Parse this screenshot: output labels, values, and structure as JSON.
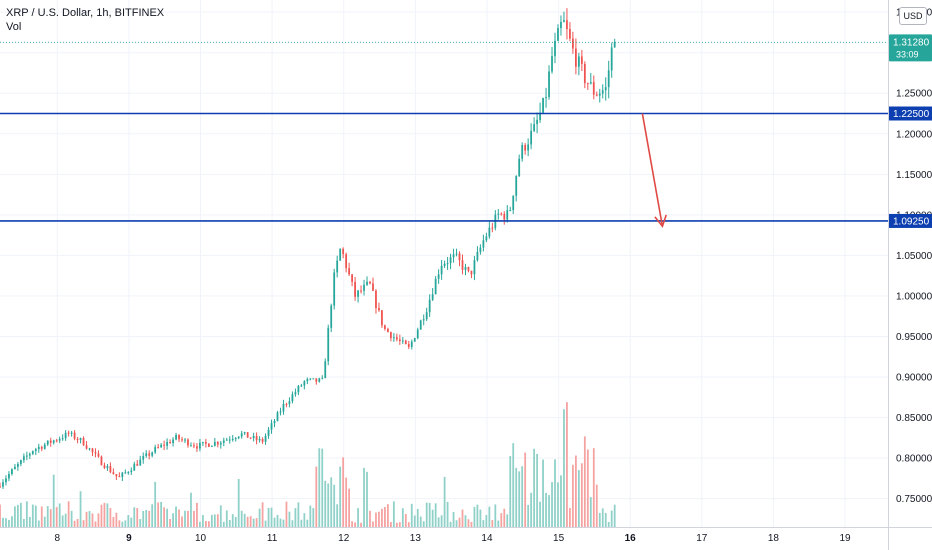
{
  "header": {
    "symbol_line": "XRP / U.S. Dollar, 1h, BITFINEX",
    "indicator": "Vol",
    "currency": "USD"
  },
  "price_scale": {
    "top_partial_label": "1.",
    "current_price": "1.31280",
    "countdown": "33:09"
  },
  "colors": {
    "up": "#26a69a",
    "down": "#ef5350",
    "up_volume": "#8fd1c8",
    "down_volume": "#f5a3a1",
    "level_line": "#0d3fb0",
    "arrow": "#e04a45",
    "current_price_line": "#26a69a",
    "grid": "#f0f3fa"
  },
  "chart_data": {
    "type": "candlestick",
    "xlabel": "",
    "ylabel": "",
    "ylim": [
      0.715,
      1.365
    ],
    "x_range_days": [
      7.2,
      19.6
    ],
    "x_tick_labels": [
      "8",
      "9",
      "10",
      "11",
      "12",
      "13",
      "14",
      "15",
      "16",
      "17",
      "18",
      "19"
    ],
    "x_tick_days": [
      8,
      9,
      10,
      11,
      12,
      13,
      14,
      15,
      16,
      17,
      18,
      19
    ],
    "bold_x_ticks": [
      "9",
      "16"
    ],
    "y_ticks": [
      0.75,
      0.8,
      0.85,
      0.9,
      0.95,
      1.0,
      1.05,
      1.1,
      1.15,
      1.2,
      1.25,
      1.3,
      1.35
    ],
    "y_tick_labels": [
      "0.75000",
      "0.80000",
      "0.85000",
      "0.90000",
      "0.95000",
      "1.00000",
      "1.05000",
      "1.10000",
      "1.15000",
      "1.20000",
      "1.25000",
      "1.30000",
      "1.35000"
    ],
    "horizontal_levels": [
      {
        "price": 1.225,
        "label": "1.22500"
      },
      {
        "price": 1.0925,
        "label": "1.09250"
      }
    ],
    "current_price": 1.3128,
    "arrow": {
      "from": {
        "day": 16.17,
        "price": 1.225
      },
      "to": {
        "day": 16.45,
        "price": 1.086
      }
    },
    "price_path": [
      {
        "day": 7.2,
        "price": 0.765
      },
      {
        "day": 7.7,
        "price": 0.81
      },
      {
        "day": 8.0,
        "price": 0.822
      },
      {
        "day": 8.2,
        "price": 0.83
      },
      {
        "day": 8.4,
        "price": 0.82
      },
      {
        "day": 8.6,
        "price": 0.8
      },
      {
        "day": 8.9,
        "price": 0.775
      },
      {
        "day": 9.1,
        "price": 0.79
      },
      {
        "day": 9.4,
        "price": 0.81
      },
      {
        "day": 9.7,
        "price": 0.825
      },
      {
        "day": 10.0,
        "price": 0.815
      },
      {
        "day": 10.3,
        "price": 0.82
      },
      {
        "day": 10.6,
        "price": 0.83
      },
      {
        "day": 10.9,
        "price": 0.82
      },
      {
        "day": 11.2,
        "price": 0.865
      },
      {
        "day": 11.5,
        "price": 0.895
      },
      {
        "day": 11.75,
        "price": 0.895
      },
      {
        "day": 11.9,
        "price": 1.02
      },
      {
        "day": 12.0,
        "price": 1.06
      },
      {
        "day": 12.2,
        "price": 1.0
      },
      {
        "day": 12.4,
        "price": 1.015
      },
      {
        "day": 12.6,
        "price": 0.96
      },
      {
        "day": 12.8,
        "price": 0.945
      },
      {
        "day": 12.95,
        "price": 0.935
      },
      {
        "day": 13.2,
        "price": 0.985
      },
      {
        "day": 13.4,
        "price": 1.04
      },
      {
        "day": 13.6,
        "price": 1.048
      },
      {
        "day": 13.8,
        "price": 1.025
      },
      {
        "day": 14.0,
        "price": 1.07
      },
      {
        "day": 14.2,
        "price": 1.1
      },
      {
        "day": 14.35,
        "price": 1.1
      },
      {
        "day": 14.5,
        "price": 1.175
      },
      {
        "day": 14.7,
        "price": 1.205
      },
      {
        "day": 14.85,
        "price": 1.24
      },
      {
        "day": 14.95,
        "price": 1.295
      },
      {
        "day": 15.1,
        "price": 1.34
      },
      {
        "day": 15.25,
        "price": 1.3
      },
      {
        "day": 15.4,
        "price": 1.27
      },
      {
        "day": 15.55,
        "price": 1.25
      },
      {
        "day": 15.7,
        "price": 1.255
      },
      {
        "day": 15.8,
        "price": 1.3128
      }
    ]
  }
}
